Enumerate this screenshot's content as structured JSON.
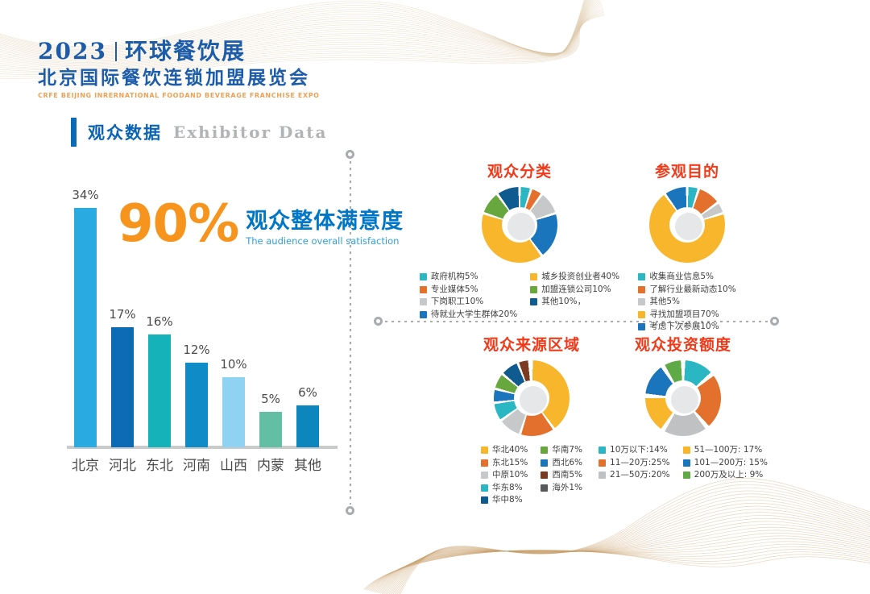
{
  "header": {
    "year": "2023",
    "title_zh": "环球餐饮展",
    "subtitle_zh": "北京国际餐饮连锁加盟展览会",
    "subtitle_en": "CRFE BEIJING INRERNATIONAL FOODAND BEVERAGE FRANCHISE EXPO",
    "brand_blue": "#1c5ca9",
    "brand_orange": "#f0a052"
  },
  "section": {
    "title_zh": "观众数据",
    "title_en": "Exhibitor Data"
  },
  "satisfaction": {
    "value": "90%",
    "label_zh": "观众整体满意度",
    "label_en": "The audience overall satisfaction",
    "value_color": "#f7941e",
    "label_color": "#0077c6"
  },
  "decor": {
    "wave_color_top": "#d8bf9c",
    "wave_color_bottom": "#c9a06b",
    "separator_color": "#a9abae"
  },
  "chart_data": [
    {
      "id": "bar-visitor-origin",
      "type": "bar",
      "categories": [
        "北京",
        "河北",
        "东北",
        "河南",
        "山西",
        "内蒙",
        "其他"
      ],
      "values": [
        34,
        17,
        16,
        12,
        10,
        5,
        6
      ],
      "labels": [
        "34%",
        "17%",
        "16%",
        "12%",
        "10%",
        "5%",
        "6%"
      ],
      "colors": [
        "#29abe2",
        "#0d6bb5",
        "#16b2ba",
        "#0f8cc7",
        "#8fd2f1",
        "#62bfa3",
        "#0c86bd"
      ],
      "title": "",
      "xlabel": "",
      "ylabel": "",
      "ylim": [
        0,
        34
      ],
      "grid": false
    },
    {
      "id": "donut-audience-type",
      "type": "pie",
      "title": "观众分类",
      "legend_split": 4,
      "gap_deg": 4,
      "items": [
        {
          "label": "政府机构5%",
          "value": 5,
          "color": "#2bb6c3"
        },
        {
          "label": "专业媒体5%",
          "value": 5,
          "color": "#e4702d"
        },
        {
          "label": "下岗职工10%",
          "value": 10,
          "color": "#c7c8ca"
        },
        {
          "label": "待就业大学生群体20%",
          "value": 20,
          "color": "#1b75bc"
        },
        {
          "label": "城乡投资创业者40%",
          "value": 40,
          "color": "#f8b62d"
        },
        {
          "label": "加盟连锁公司10%",
          "value": 10,
          "color": "#67a73e"
        },
        {
          "label": "其他10%，",
          "value": 10,
          "color": "#0f5a8e"
        }
      ]
    },
    {
      "id": "donut-visit-purpose",
      "type": "pie",
      "title": "参观目的",
      "legend_split": 5,
      "gap_deg": 4,
      "items": [
        {
          "label": "收集商业信息5%",
          "value": 5,
          "color": "#2bb6c3"
        },
        {
          "label": "了解行业最新动态10%",
          "value": 10,
          "color": "#e4702d"
        },
        {
          "label": "其他5%",
          "value": 5,
          "color": "#c7c8ca"
        },
        {
          "label": "寻找加盟项目70%",
          "value": 70,
          "color": "#f8b62d"
        },
        {
          "label": "考虑下次参展10%",
          "value": 10,
          "color": "#1b75bc"
        }
      ]
    },
    {
      "id": "donut-source-region",
      "type": "pie",
      "title": "观众来源区域",
      "legend_split": 5,
      "legend_order": [
        0,
        1,
        2,
        3,
        6,
        5,
        4,
        7,
        8
      ],
      "gap_deg": 4,
      "items": [
        {
          "label": "华北40%",
          "value": 40,
          "color": "#f8b62d"
        },
        {
          "label": "东北15%",
          "value": 15,
          "color": "#e4702d"
        },
        {
          "label": "中原10%",
          "value": 10,
          "color": "#c7c8ca"
        },
        {
          "label": "华东8%",
          "value": 8,
          "color": "#2bb6c3"
        },
        {
          "label": "西北6%",
          "value": 6,
          "color": "#1b75bc"
        },
        {
          "label": "华南7%",
          "value": 7,
          "color": "#67a73e"
        },
        {
          "label": "华中8%",
          "value": 8,
          "color": "#0f5a8e"
        },
        {
          "label": "西南5%",
          "value": 5,
          "color": "#7a3b22"
        },
        {
          "label": "海外1%",
          "value": 1,
          "color": "#58595b"
        }
      ]
    },
    {
      "id": "donut-investment",
      "type": "pie",
      "title": "观众投资额度",
      "legend_split": 3,
      "gap_deg": 7,
      "items": [
        {
          "label": "10万以下:14%",
          "value": 14,
          "color": "#2bb6c3"
        },
        {
          "label": "11—20万:25%",
          "value": 25,
          "color": "#e4702d"
        },
        {
          "label": "21—50万:20%",
          "value": 20,
          "color": "#c0c1c3"
        },
        {
          "label": "51—100万: 17%",
          "value": 17,
          "color": "#f8b62d"
        },
        {
          "label": "101—200万: 15%",
          "value": 15,
          "color": "#1b75bc"
        },
        {
          "label": "200万及以上: 9%",
          "value": 9,
          "color": "#5faa46"
        }
      ]
    }
  ]
}
